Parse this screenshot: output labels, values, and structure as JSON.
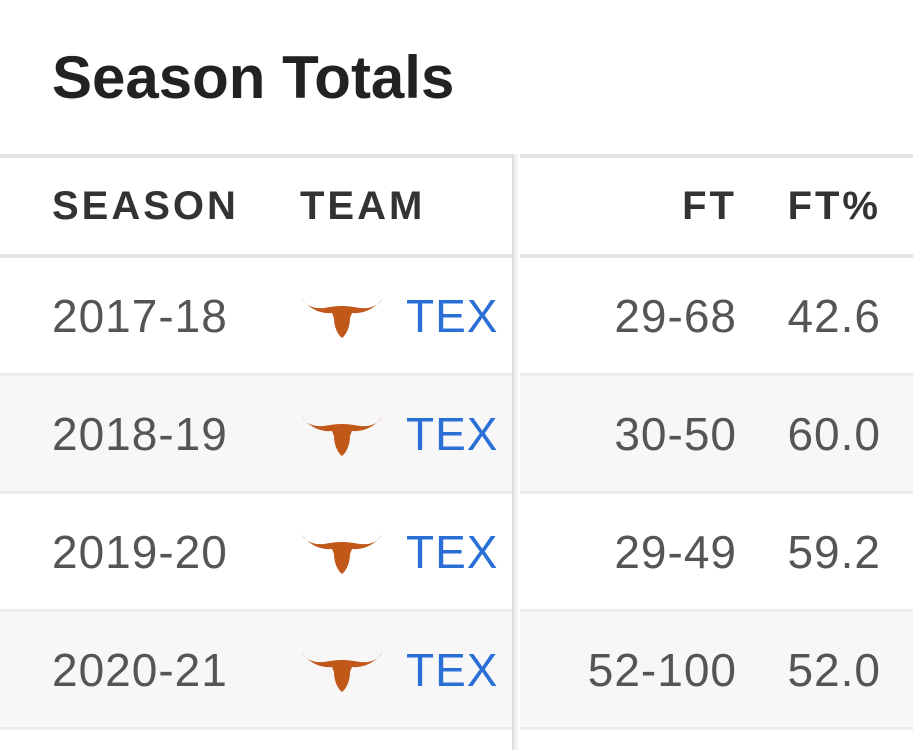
{
  "page": {
    "title": "Season Totals"
  },
  "table": {
    "headers": {
      "season": "SEASON",
      "team": "TEAM",
      "ft": "FT",
      "ft_pct": "FT%"
    },
    "rows": [
      {
        "season": "2017-18",
        "team": "TEX",
        "ft": "29-68",
        "ft_pct": "42.6"
      },
      {
        "season": "2018-19",
        "team": "TEX",
        "ft": "30-50",
        "ft_pct": "60.0"
      },
      {
        "season": "2019-20",
        "team": "TEX",
        "ft": "29-49",
        "ft_pct": "59.2"
      },
      {
        "season": "2020-21",
        "team": "TEX",
        "ft": "52-100",
        "ft_pct": "52.0"
      }
    ]
  },
  "colors": {
    "team_logo": "#c2571a",
    "team_link": "#2a6fd6"
  },
  "icons": {
    "team_logo": "longhorn-icon"
  }
}
